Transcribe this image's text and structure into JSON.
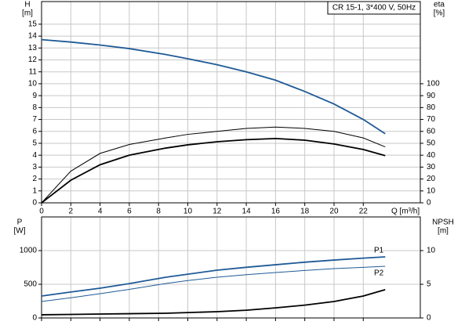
{
  "chart_data": [
    {
      "type": "line",
      "title": "CR 15-1, 3*400 V, 50Hz",
      "ylabel": [
        "H",
        "[m]"
      ],
      "y2label": [
        "eta",
        "[%]"
      ],
      "xlabel": "Q [m³/h]",
      "x": [
        0,
        2,
        4,
        6,
        8.5,
        10,
        12,
        14,
        16,
        18,
        20,
        22,
        23.5
      ],
      "xlim": [
        0,
        25.9
      ],
      "xticks": [
        0,
        2,
        4,
        6,
        8,
        10,
        12,
        14,
        16,
        18,
        20,
        22
      ],
      "ylim": [
        0,
        16.9
      ],
      "yticks": [
        0,
        1,
        2,
        3,
        4,
        5,
        6,
        7,
        8,
        9,
        10,
        11,
        12,
        13,
        14,
        15
      ],
      "y2lim": [
        0,
        169
      ],
      "y2ticks": [
        0,
        10,
        20,
        30,
        40,
        50,
        60,
        70,
        80,
        90,
        100
      ],
      "grid": true,
      "series": [
        {
          "color": "#1f5a96",
          "values": [
            13.7,
            13.5,
            13.25,
            12.95,
            12.45,
            12.1,
            11.6,
            11.0,
            10.3,
            9.35,
            8.3,
            7.0,
            5.8
          ]
        },
        {
          "color": "#000000",
          "axis": "y2",
          "values": [
            0,
            26.6,
            41.5,
            49,
            54.5,
            57.5,
            60,
            62.5,
            63.6,
            62.5,
            60,
            54.5,
            47
          ]
        },
        {
          "color": "#000000",
          "axis": "y2",
          "values": [
            0,
            19,
            32,
            40,
            46,
            48.7,
            51.3,
            53,
            54,
            52.6,
            49.4,
            44.8,
            39.6
          ]
        }
      ]
    },
    {
      "type": "line",
      "ylabel": [
        "P",
        "[W]"
      ],
      "y2label": [
        "NPSH",
        "[m]"
      ],
      "x": [
        0,
        2,
        4,
        6,
        8.5,
        10,
        12,
        14,
        16,
        18,
        20,
        22,
        23.5
      ],
      "xlim": [
        0,
        25.9
      ],
      "xticks": [
        0,
        2,
        4,
        6,
        8,
        10,
        12,
        14,
        16,
        18,
        20,
        22
      ],
      "ylim": [
        0,
        1500
      ],
      "yticks": [
        0,
        500,
        1000
      ],
      "y2lim": [
        0,
        15
      ],
      "y2ticks": [
        0,
        5,
        10
      ],
      "grid": true,
      "series": [
        {
          "name": "P1",
          "color": "#1f5a96",
          "values": [
            326,
            385,
            442,
            510,
            605,
            650,
            709,
            752,
            790,
            828,
            860,
            888,
            907
          ]
        },
        {
          "name": "P2",
          "color": "#1f5a96",
          "values": [
            244,
            300,
            360,
            425,
            512,
            555,
            605,
            642,
            674,
            705,
            733,
            752,
            767
          ]
        },
        {
          "color": "#000000",
          "axis": "y2",
          "values": [
            0.47,
            0.52,
            0.58,
            0.63,
            0.7,
            0.8,
            0.93,
            1.15,
            1.5,
            1.9,
            2.44,
            3.26,
            4.2
          ]
        }
      ]
    }
  ]
}
